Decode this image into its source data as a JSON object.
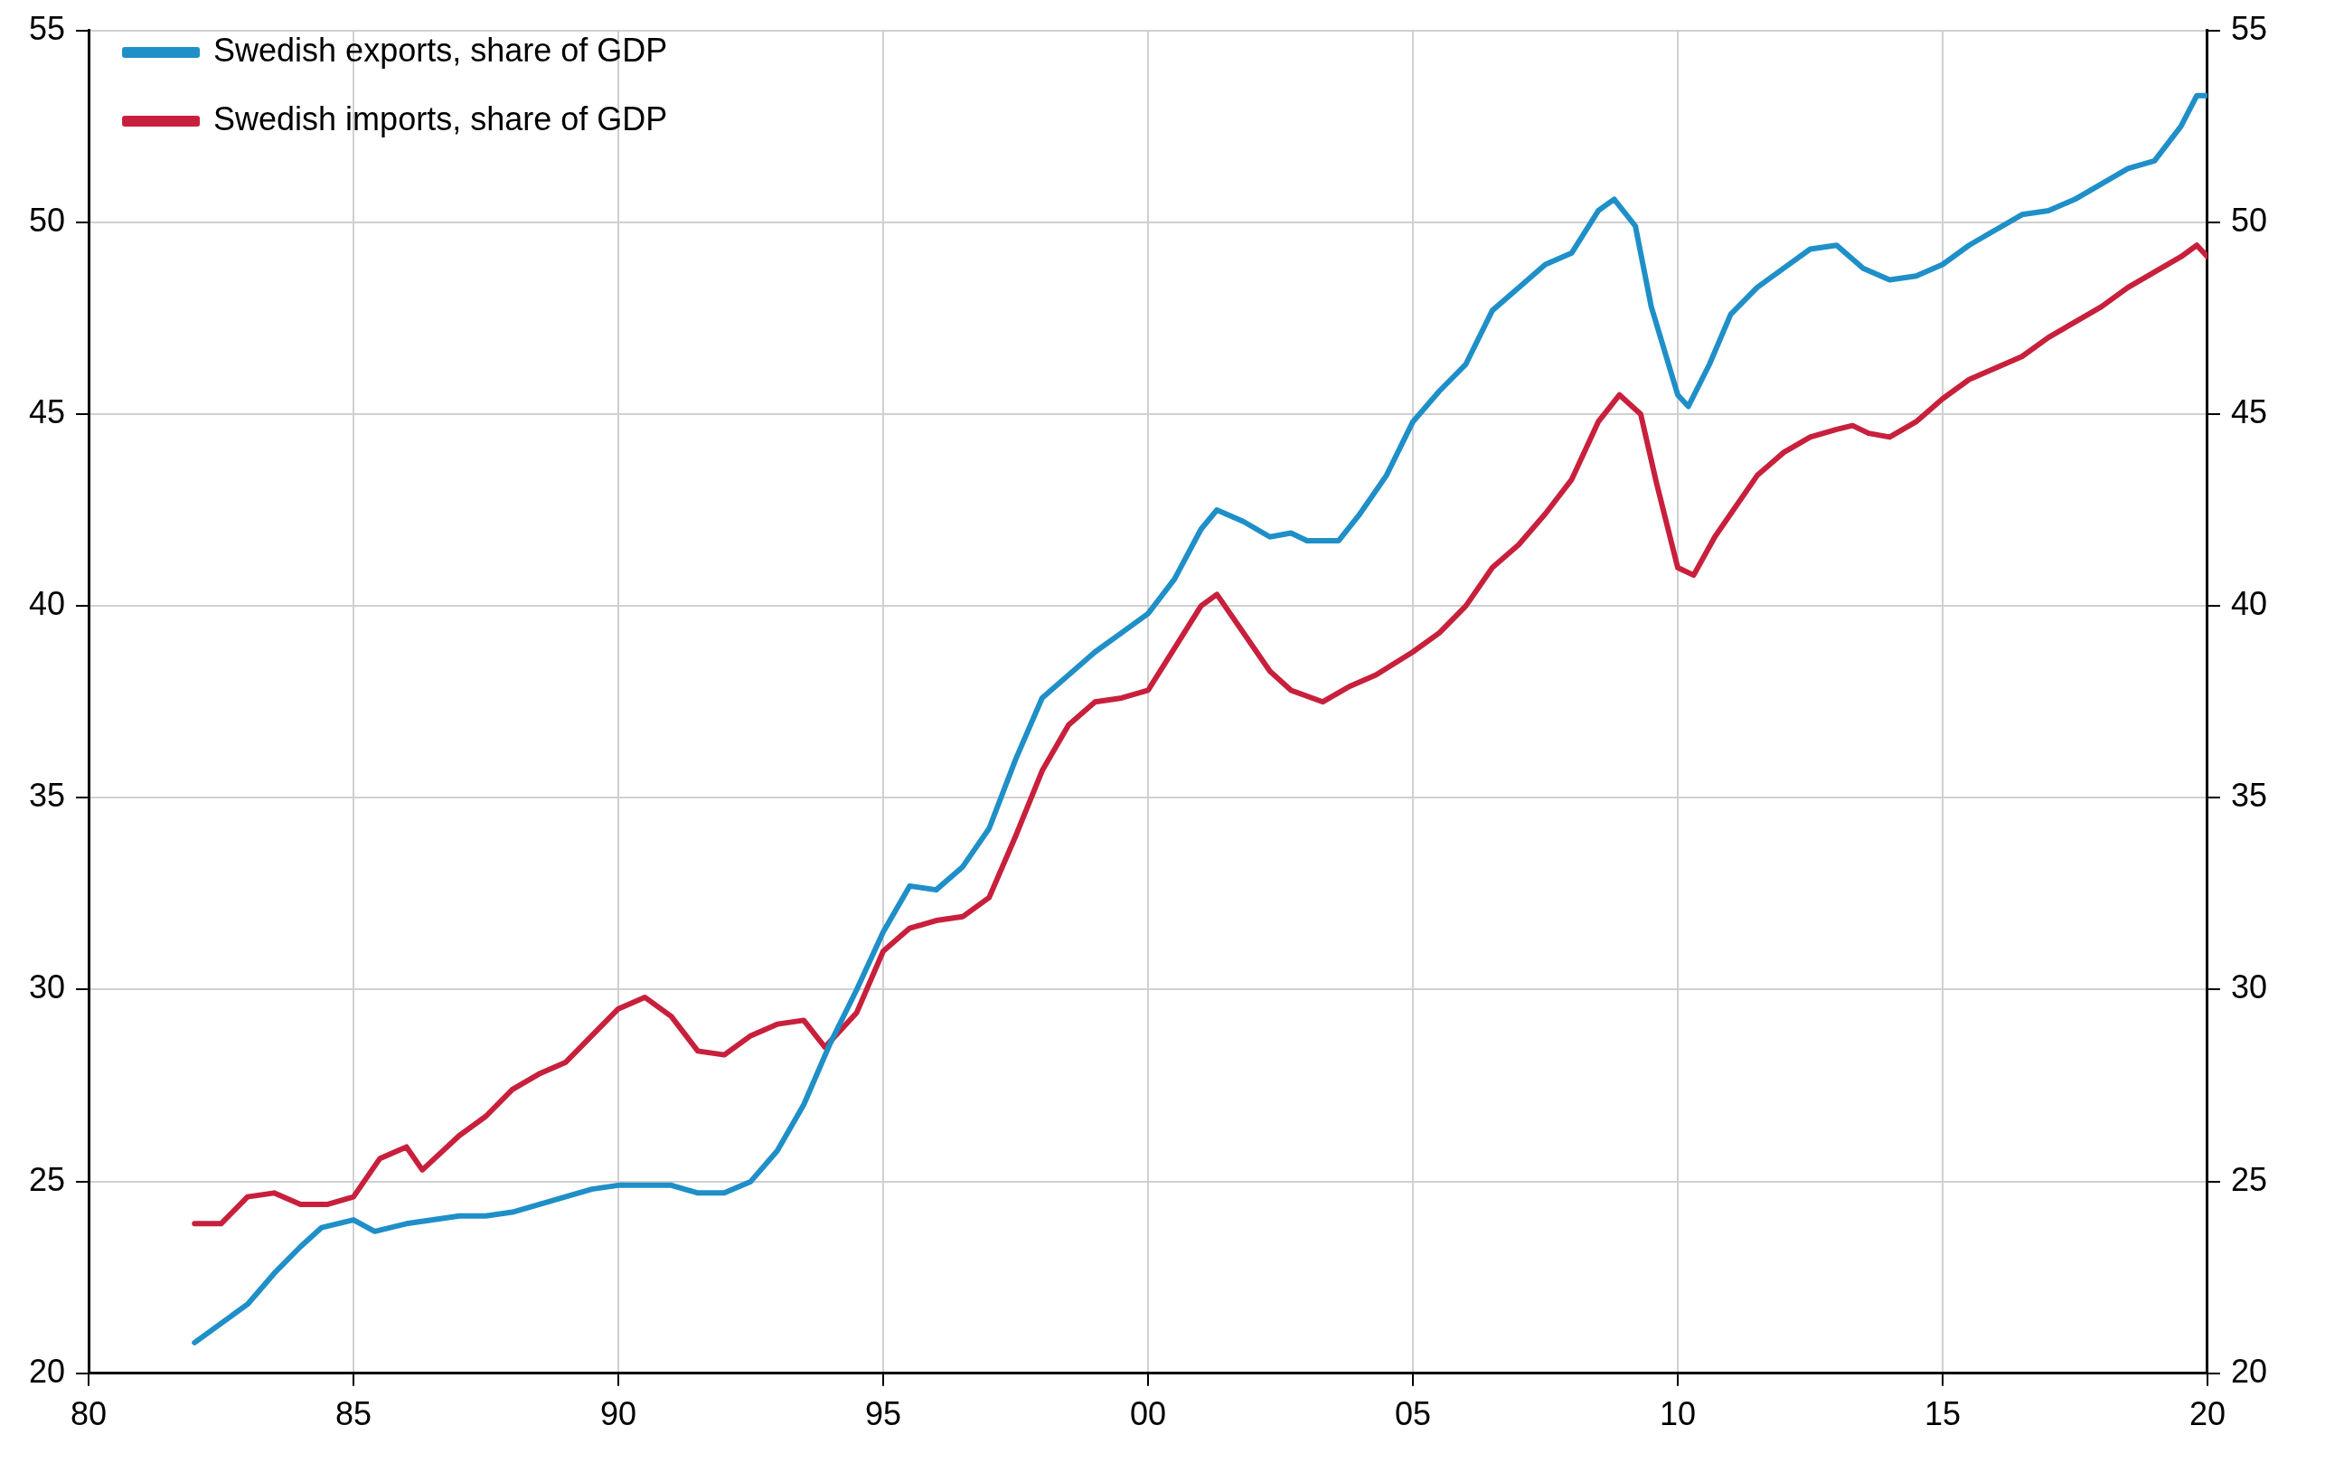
{
  "chart_data": {
    "type": "line",
    "x": [
      1982,
      1982.5,
      1983,
      1983.5,
      1984,
      1984.4,
      1985,
      1985.4,
      1986,
      1986.5,
      1987,
      1987.5,
      1988,
      1988.5,
      1989,
      1989.5,
      1990,
      1990.5,
      1991,
      1991.5,
      1992,
      1992.5,
      1993,
      1993.5,
      1994,
      1994.5,
      1995,
      1995.5,
      1996,
      1996.5,
      1997,
      1997.5,
      1998,
      1998.5,
      1999,
      1999.5,
      2000,
      2000.5,
      2001,
      2001.3,
      2001.8,
      2002.3,
      2002.7,
      2003,
      2003.6,
      2004,
      2004.5,
      2005,
      2005.5,
      2006,
      2006.5,
      2007,
      2007.5,
      2008,
      2008.5,
      2008.8,
      2009.2,
      2009.5,
      2010,
      2010.2,
      2010.6,
      2011,
      2011.5,
      2012,
      2012.5,
      2013,
      2013.5,
      2014,
      2014.5,
      2015,
      2015.5,
      2016,
      2016.5,
      2017,
      2017.5,
      2018,
      2018.5,
      2019,
      2019.5,
      2019.8,
      2020
    ],
    "series": [
      {
        "name": "Swedish exports, share of GDP",
        "color": "#1f8fc8",
        "values": [
          20.8,
          21.3,
          21.8,
          22.6,
          23.3,
          23.8,
          24.0,
          23.7,
          23.9,
          24.0,
          24.1,
          24.1,
          24.2,
          24.4,
          24.6,
          24.8,
          24.9,
          24.9,
          24.9,
          24.7,
          24.7,
          25.0,
          25.8,
          27.0,
          28.6,
          30.0,
          31.5,
          32.7,
          32.6,
          33.2,
          34.2,
          36.0,
          37.6,
          38.2,
          38.8,
          39.3,
          39.8,
          40.7,
          42.0,
          42.5,
          42.2,
          41.8,
          41.9,
          41.7,
          41.7,
          42.4,
          43.4,
          44.8,
          45.6,
          46.3,
          47.7,
          48.3,
          48.9,
          49.2,
          50.3,
          50.6,
          49.9,
          47.8,
          45.5,
          45.2,
          46.3,
          47.6,
          48.3,
          48.8,
          49.3,
          49.4,
          48.8,
          48.5,
          48.6,
          48.9,
          49.4,
          49.8,
          50.2,
          50.3,
          50.6,
          51.0,
          51.4,
          51.6,
          52.5,
          53.3,
          53.3
        ]
      },
      {
        "name": "Swedish imports, share of GDP",
        "color": "#c8203c",
        "x": [
          1982,
          1982.5,
          1983,
          1983.5,
          1984,
          1984.5,
          1985,
          1985.5,
          1986,
          1986.3,
          1987,
          1987.5,
          1988,
          1988.5,
          1989,
          1989.5,
          1990,
          1990.5,
          1991,
          1991.5,
          1992,
          1992.5,
          1993,
          1993.5,
          1993.9,
          1994.5,
          1995,
          1995.5,
          1996,
          1996.5,
          1997,
          1997.5,
          1998,
          1998.5,
          1999,
          1999.5,
          2000,
          2000.5,
          2001,
          2001.3,
          2001.8,
          2002.3,
          2002.7,
          2003.3,
          2003.8,
          2004.3,
          2005,
          2005.5,
          2006,
          2006.5,
          2007,
          2007.5,
          2008,
          2008.5,
          2008.9,
          2009.3,
          2009.6,
          2010,
          2010.3,
          2010.7,
          2011,
          2011.5,
          2012,
          2012.5,
          2013,
          2013.3,
          2013.6,
          2014,
          2014.5,
          2015,
          2015.5,
          2016,
          2016.5,
          2017,
          2017.5,
          2018,
          2018.5,
          2019,
          2019.5,
          2019.8,
          2020
        ],
        "values": [
          23.9,
          23.9,
          24.6,
          24.7,
          24.4,
          24.4,
          24.6,
          25.6,
          25.9,
          25.3,
          26.2,
          26.7,
          27.4,
          27.8,
          28.1,
          28.8,
          29.5,
          29.8,
          29.3,
          28.4,
          28.3,
          28.8,
          29.1,
          29.2,
          28.5,
          29.4,
          31.0,
          31.6,
          31.8,
          31.9,
          32.4,
          34.0,
          35.7,
          36.9,
          37.5,
          37.6,
          37.8,
          38.9,
          40.0,
          40.3,
          39.3,
          38.3,
          37.8,
          37.5,
          37.9,
          38.2,
          38.8,
          39.3,
          40.0,
          41.0,
          41.6,
          42.4,
          43.3,
          44.8,
          45.5,
          45.0,
          43.2,
          41.0,
          40.8,
          41.8,
          42.4,
          43.4,
          44.0,
          44.4,
          44.6,
          44.7,
          44.5,
          44.4,
          44.8,
          45.4,
          45.9,
          46.2,
          46.5,
          47.0,
          47.4,
          47.8,
          48.3,
          48.7,
          49.1,
          49.4,
          49.1
        ]
      }
    ],
    "xlim": [
      1980,
      2020
    ],
    "xticks": [
      {
        "value": 1980,
        "label": "80"
      },
      {
        "value": 1985,
        "label": "85"
      },
      {
        "value": 1990,
        "label": "90"
      },
      {
        "value": 1995,
        "label": "95"
      },
      {
        "value": 2000,
        "label": "00"
      },
      {
        "value": 2005,
        "label": "05"
      },
      {
        "value": 2010,
        "label": "10"
      },
      {
        "value": 2015,
        "label": "15"
      },
      {
        "value": 2020,
        "label": "20"
      }
    ],
    "ylim": [
      20,
      55
    ],
    "yticks": [
      20,
      25,
      30,
      35,
      40,
      45,
      50,
      55
    ],
    "y2lim": [
      20,
      55
    ],
    "y2ticks": [
      20,
      25,
      30,
      35,
      40,
      45,
      50,
      55
    ],
    "grid": true,
    "legend": "top left",
    "marker": "none",
    "line_style": "solid"
  }
}
